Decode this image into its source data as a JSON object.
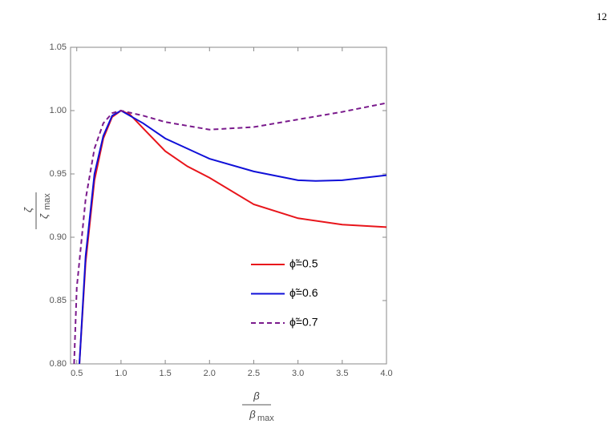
{
  "page_number": "12",
  "chart_data": {
    "type": "line",
    "x_label": {
      "numerator": "β",
      "denominator": "β",
      "denominator_subscript": "max"
    },
    "y_label": {
      "numerator": "ζ",
      "denominator": "ζ",
      "denominator_subscript": "max"
    },
    "xlim": [
      0.43,
      4.0
    ],
    "ylim": [
      0.8,
      1.05
    ],
    "xticks": [
      {
        "value": 0.5,
        "label": "0.5"
      },
      {
        "value": 1,
        "label": "1.0"
      },
      {
        "value": 1.5,
        "label": "1.5"
      },
      {
        "value": 2,
        "label": "2.0"
      },
      {
        "value": 2.5,
        "label": "2.5"
      },
      {
        "value": 3,
        "label": "3.0"
      },
      {
        "value": 3.5,
        "label": "3.5"
      },
      {
        "value": 4,
        "label": "4.0"
      }
    ],
    "yticks": [
      {
        "value": 0.8,
        "label": "0.80"
      },
      {
        "value": 0.85,
        "label": "0.85"
      },
      {
        "value": 0.9,
        "label": "0.90"
      },
      {
        "value": 0.95,
        "label": "0.95"
      },
      {
        "value": 1,
        "label": "1.00"
      },
      {
        "value": 1.05,
        "label": "1.05"
      }
    ],
    "series": [
      {
        "name": "ϕ̃=0.5",
        "color": "#e8151b",
        "dash": false,
        "x": [
          0.53,
          0.6,
          0.7,
          0.8,
          0.9,
          1.0,
          1.1,
          1.25,
          1.5,
          1.75,
          2.0,
          2.5,
          3.0,
          3.5,
          4.0
        ],
        "values": [
          0.8,
          0.88,
          0.945,
          0.978,
          0.995,
          1.0,
          0.997,
          0.986,
          0.968,
          0.956,
          0.947,
          0.926,
          0.915,
          0.91,
          0.908
        ]
      },
      {
        "name": "ϕ̃=0.6",
        "color": "#1010d8",
        "dash": false,
        "x": [
          0.53,
          0.6,
          0.7,
          0.8,
          0.9,
          1.0,
          1.25,
          1.5,
          2.0,
          2.5,
          3.0,
          3.2,
          3.5,
          4.0
        ],
        "values": [
          0.8,
          0.885,
          0.95,
          0.98,
          0.996,
          1.0,
          0.99,
          0.978,
          0.962,
          0.952,
          0.945,
          0.9445,
          0.945,
          0.949
        ]
      },
      {
        "name": "ϕ̃=0.7",
        "color": "#7a1a8c",
        "dash": true,
        "x": [
          0.47,
          0.5,
          0.6,
          0.7,
          0.8,
          0.9,
          1.0,
          1.25,
          1.5,
          2.0,
          2.5,
          3.0,
          3.5,
          4.0
        ],
        "values": [
          0.8,
          0.86,
          0.93,
          0.97,
          0.99,
          0.998,
          1.0,
          0.996,
          0.991,
          0.985,
          0.987,
          0.993,
          0.999,
          1.006
        ]
      }
    ]
  }
}
